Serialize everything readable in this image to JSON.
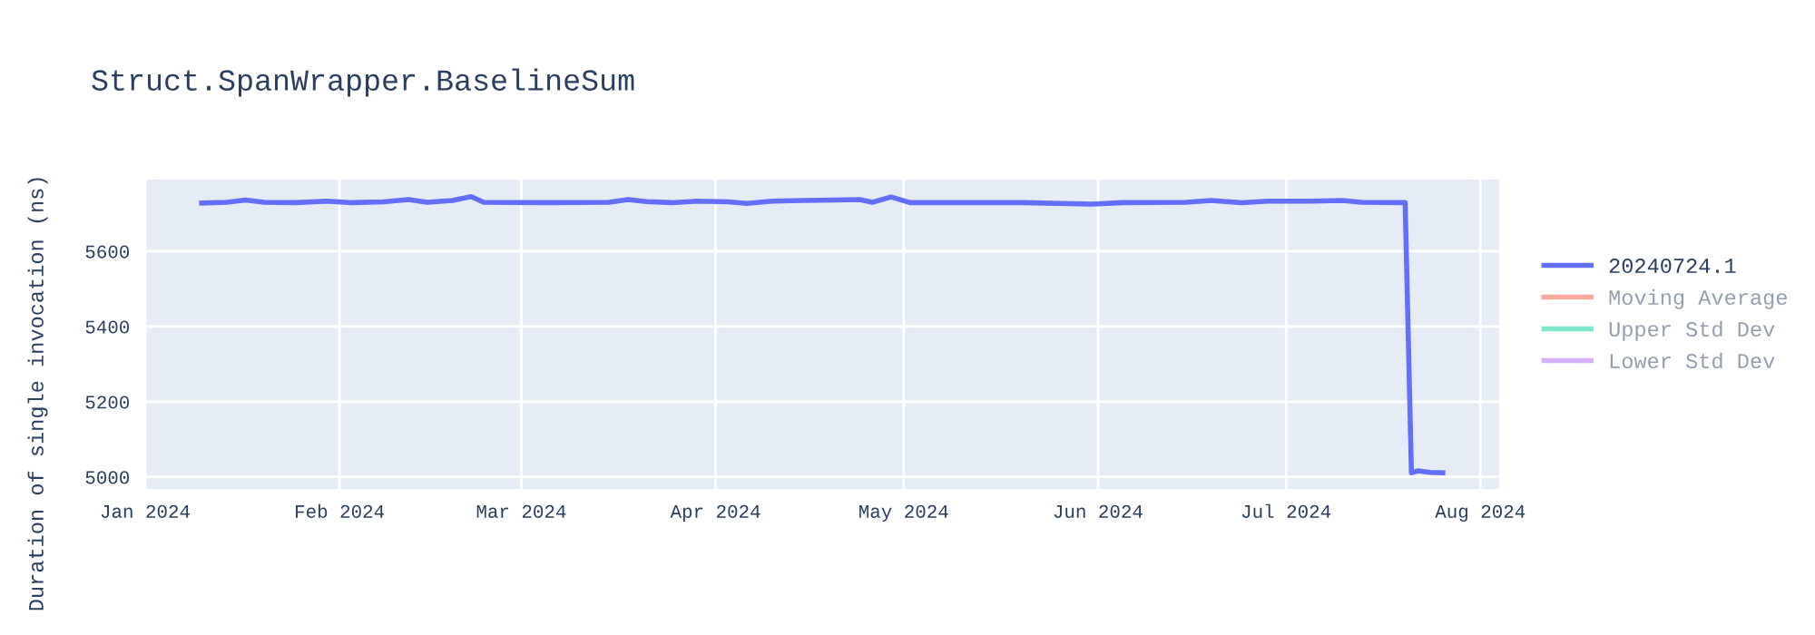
{
  "chart_data": {
    "type": "line",
    "title": "Struct.SpanWrapper.BaselineSum",
    "ylabel": "Duration of single invocation (ns)",
    "x": [
      "2024-01-10",
      "2024-01-14",
      "2024-01-17",
      "2024-01-20",
      "2024-01-25",
      "2024-01-30",
      "2024-02-03",
      "2024-02-08",
      "2024-02-12",
      "2024-02-15",
      "2024-02-19",
      "2024-02-22",
      "2024-02-24",
      "2024-03-05",
      "2024-03-15",
      "2024-03-18",
      "2024-03-21",
      "2024-03-25",
      "2024-03-29",
      "2024-04-03",
      "2024-04-06",
      "2024-04-10",
      "2024-04-15",
      "2024-04-20",
      "2024-04-24",
      "2024-04-26",
      "2024-04-29",
      "2024-05-02",
      "2024-05-10",
      "2024-05-20",
      "2024-05-31",
      "2024-06-05",
      "2024-06-15",
      "2024-06-19",
      "2024-06-24",
      "2024-06-28",
      "2024-07-05",
      "2024-07-10",
      "2024-07-13",
      "2024-07-20",
      "2024-07-21",
      "2024-07-22",
      "2024-07-24",
      "2024-07-26"
    ],
    "series": [
      {
        "name": "20240724.1",
        "color": "#636efa",
        "values": [
          5728,
          5730,
          5736,
          5730,
          5729,
          5733,
          5729,
          5731,
          5737,
          5730,
          5735,
          5745,
          5730,
          5729,
          5730,
          5737,
          5732,
          5729,
          5733,
          5731,
          5727,
          5733,
          5735,
          5736,
          5737,
          5730,
          5744,
          5729,
          5729,
          5729,
          5725,
          5729,
          5730,
          5735,
          5729,
          5733,
          5733,
          5735,
          5730,
          5729,
          5011,
          5016,
          5012,
          5011
        ]
      },
      {
        "name": "Moving Average",
        "color": "#ef553b",
        "values": [
          null,
          null,
          null,
          null,
          null,
          null,
          null,
          null,
          null,
          null,
          null,
          null,
          null,
          null,
          null,
          null,
          null,
          null,
          null,
          null,
          null,
          null,
          null,
          null,
          null,
          null,
          null,
          null,
          null,
          null,
          null,
          null,
          null,
          null,
          null,
          null,
          null,
          null,
          null,
          null,
          null,
          null,
          null,
          null
        ]
      },
      {
        "name": "Upper Std Dev",
        "color": "#00cc96",
        "values": [
          null,
          null,
          null,
          null,
          null,
          null,
          null,
          null,
          null,
          null,
          null,
          null,
          null,
          null,
          null,
          null,
          null,
          null,
          null,
          null,
          null,
          null,
          null,
          null,
          null,
          null,
          null,
          null,
          null,
          null,
          null,
          null,
          null,
          null,
          null,
          null,
          null,
          null,
          null,
          null,
          null,
          null,
          null,
          null
        ]
      },
      {
        "name": "Lower Std Dev",
        "color": "#ab63fa",
        "values": [
          null,
          null,
          null,
          null,
          null,
          null,
          null,
          null,
          null,
          null,
          null,
          null,
          null,
          null,
          null,
          null,
          null,
          null,
          null,
          null,
          null,
          null,
          null,
          null,
          null,
          null,
          null,
          null,
          null,
          null,
          null,
          null,
          null,
          null,
          null,
          null,
          null,
          null,
          null,
          null,
          null,
          null,
          null,
          null
        ]
      }
    ],
    "xlim": [
      "2024-01-01",
      "2024-08-04"
    ],
    "xticks": [
      {
        "value": "2024-01-01",
        "label": "Jan 2024"
      },
      {
        "value": "2024-02-01",
        "label": "Feb 2024"
      },
      {
        "value": "2024-03-01",
        "label": "Mar 2024"
      },
      {
        "value": "2024-04-01",
        "label": "Apr 2024"
      },
      {
        "value": "2024-05-01",
        "label": "May 2024"
      },
      {
        "value": "2024-06-01",
        "label": "Jun 2024"
      },
      {
        "value": "2024-07-01",
        "label": "Jul 2024"
      },
      {
        "value": "2024-08-01",
        "label": "Aug 2024"
      }
    ],
    "ylim": [
      4968,
      5790
    ],
    "yticks": [
      5000,
      5200,
      5400,
      5600
    ],
    "grid": true,
    "legend": "top right",
    "marker": "none",
    "line_style": "solid"
  }
}
